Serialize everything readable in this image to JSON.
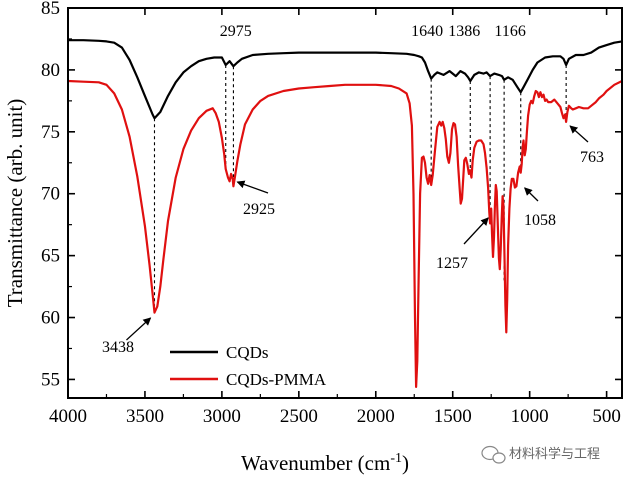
{
  "chart_data": {
    "type": "line",
    "title": "",
    "xlabel": "Wavenumber (cm",
    "xlabel_sup": "-1",
    "xlabel_end": ")",
    "ylabel": "Transmittance (arb. unit)",
    "xlim": [
      4000,
      400
    ],
    "ylim": [
      53.5,
      85
    ],
    "x_reversed": true,
    "xticks": [
      4000,
      3500,
      3000,
      2500,
      2000,
      1500,
      1000,
      500
    ],
    "yticks": [
      55,
      60,
      65,
      70,
      75,
      80,
      85
    ],
    "grid": false,
    "legend_position": "bottom-left",
    "series": [
      {
        "name": "CQDs",
        "color": "#000000",
        "points": [
          [
            4000,
            82.4
          ],
          [
            3900,
            82.4
          ],
          [
            3800,
            82.35
          ],
          [
            3750,
            82.3
          ],
          [
            3700,
            82.2
          ],
          [
            3650,
            81.8
          ],
          [
            3600,
            80.8
          ],
          [
            3550,
            79.4
          ],
          [
            3500,
            77.9
          ],
          [
            3450,
            76.4
          ],
          [
            3438,
            76.1
          ],
          [
            3400,
            76.6
          ],
          [
            3350,
            77.9
          ],
          [
            3300,
            79.0
          ],
          [
            3250,
            79.8
          ],
          [
            3200,
            80.3
          ],
          [
            3150,
            80.7
          ],
          [
            3100,
            80.9
          ],
          [
            3050,
            81.0
          ],
          [
            3000,
            81.0
          ],
          [
            2975,
            80.4
          ],
          [
            2950,
            80.7
          ],
          [
            2925,
            80.3
          ],
          [
            2900,
            80.6
          ],
          [
            2870,
            80.9
          ],
          [
            2800,
            81.2
          ],
          [
            2700,
            81.3
          ],
          [
            2600,
            81.35
          ],
          [
            2500,
            81.4
          ],
          [
            2400,
            81.4
          ],
          [
            2300,
            81.4
          ],
          [
            2200,
            81.4
          ],
          [
            2100,
            81.4
          ],
          [
            2000,
            81.4
          ],
          [
            1900,
            81.35
          ],
          [
            1800,
            81.3
          ],
          [
            1750,
            81.2
          ],
          [
            1720,
            81.1
          ],
          [
            1700,
            81.0
          ],
          [
            1680,
            80.6
          ],
          [
            1660,
            79.9
          ],
          [
            1640,
            79.3
          ],
          [
            1620,
            79.6
          ],
          [
            1600,
            79.8
          ],
          [
            1560,
            79.6
          ],
          [
            1520,
            79.9
          ],
          [
            1480,
            79.5
          ],
          [
            1450,
            79.9
          ],
          [
            1420,
            79.7
          ],
          [
            1400,
            79.4
          ],
          [
            1386,
            79.1
          ],
          [
            1360,
            79.6
          ],
          [
            1330,
            79.8
          ],
          [
            1300,
            79.7
          ],
          [
            1280,
            79.8
          ],
          [
            1257,
            79.5
          ],
          [
            1230,
            79.7
          ],
          [
            1200,
            79.6
          ],
          [
            1180,
            79.5
          ],
          [
            1166,
            79.2
          ],
          [
            1140,
            79.4
          ],
          [
            1110,
            79.2
          ],
          [
            1080,
            78.6
          ],
          [
            1058,
            78.2
          ],
          [
            1040,
            78.6
          ],
          [
            1010,
            79.3
          ],
          [
            980,
            80.0
          ],
          [
            950,
            80.6
          ],
          [
            900,
            81.0
          ],
          [
            850,
            81.1
          ],
          [
            800,
            81.1
          ],
          [
            780,
            80.9
          ],
          [
            763,
            80.4
          ],
          [
            745,
            80.9
          ],
          [
            700,
            81.2
          ],
          [
            650,
            81.2
          ],
          [
            600,
            81.4
          ],
          [
            550,
            81.8
          ],
          [
            500,
            82.0
          ],
          [
            450,
            82.2
          ],
          [
            400,
            82.3
          ]
        ]
      },
      {
        "name": "CQDs-PMMA",
        "color": "#e01010",
        "points": [
          [
            4000,
            79.1
          ],
          [
            3900,
            79.05
          ],
          [
            3800,
            79.0
          ],
          [
            3750,
            78.8
          ],
          [
            3700,
            78.1
          ],
          [
            3650,
            76.8
          ],
          [
            3600,
            74.6
          ],
          [
            3550,
            71.4
          ],
          [
            3500,
            67.4
          ],
          [
            3470,
            64.2
          ],
          [
            3450,
            61.9
          ],
          [
            3438,
            60.4
          ],
          [
            3420,
            60.9
          ],
          [
            3400,
            62.5
          ],
          [
            3380,
            64.7
          ],
          [
            3350,
            67.8
          ],
          [
            3300,
            71.3
          ],
          [
            3250,
            73.6
          ],
          [
            3200,
            75.1
          ],
          [
            3150,
            76.1
          ],
          [
            3100,
            76.7
          ],
          [
            3060,
            76.9
          ],
          [
            3040,
            76.5
          ],
          [
            3020,
            75.8
          ],
          [
            3000,
            74.5
          ],
          [
            2985,
            73.2
          ],
          [
            2975,
            72.0
          ],
          [
            2960,
            71.3
          ],
          [
            2950,
            71.0
          ],
          [
            2940,
            71.6
          ],
          [
            2930,
            71.2
          ],
          [
            2925,
            70.6
          ],
          [
            2915,
            71.4
          ],
          [
            2900,
            72.6
          ],
          [
            2880,
            74.0
          ],
          [
            2850,
            75.6
          ],
          [
            2800,
            76.8
          ],
          [
            2750,
            77.5
          ],
          [
            2700,
            77.9
          ],
          [
            2600,
            78.3
          ],
          [
            2500,
            78.5
          ],
          [
            2400,
            78.6
          ],
          [
            2300,
            78.7
          ],
          [
            2200,
            78.8
          ],
          [
            2100,
            78.8
          ],
          [
            2000,
            78.8
          ],
          [
            1900,
            78.7
          ],
          [
            1850,
            78.5
          ],
          [
            1800,
            78.1
          ],
          [
            1780,
            77.3
          ],
          [
            1765,
            75.5
          ],
          [
            1755,
            70.0
          ],
          [
            1745,
            60.0
          ],
          [
            1738,
            54.4
          ],
          [
            1730,
            56.5
          ],
          [
            1722,
            63.0
          ],
          [
            1712,
            70.0
          ],
          [
            1700,
            72.9
          ],
          [
            1690,
            73.0
          ],
          [
            1680,
            72.5
          ],
          [
            1670,
            71.3
          ],
          [
            1660,
            70.8
          ],
          [
            1650,
            71.5
          ],
          [
            1640,
            70.7
          ],
          [
            1630,
            71.5
          ],
          [
            1615,
            73.5
          ],
          [
            1600,
            75.4
          ],
          [
            1585,
            75.8
          ],
          [
            1575,
            75.5
          ],
          [
            1565,
            75.8
          ],
          [
            1555,
            75.3
          ],
          [
            1545,
            74.4
          ],
          [
            1535,
            73.0
          ],
          [
            1525,
            72.5
          ],
          [
            1515,
            73.3
          ],
          [
            1505,
            75.2
          ],
          [
            1495,
            75.7
          ],
          [
            1485,
            75.6
          ],
          [
            1475,
            74.6
          ],
          [
            1465,
            72.3
          ],
          [
            1455,
            70.5
          ],
          [
            1448,
            69.2
          ],
          [
            1440,
            69.6
          ],
          [
            1432,
            71.2
          ],
          [
            1425,
            72.7
          ],
          [
            1415,
            72.9
          ],
          [
            1405,
            72.4
          ],
          [
            1395,
            71.6
          ],
          [
            1388,
            71.9
          ],
          [
            1378,
            71.3
          ],
          [
            1370,
            72.7
          ],
          [
            1360,
            73.7
          ],
          [
            1345,
            74.2
          ],
          [
            1330,
            74.3
          ],
          [
            1315,
            74.3
          ],
          [
            1300,
            74.0
          ],
          [
            1290,
            73.3
          ],
          [
            1280,
            72.1
          ],
          [
            1270,
            70.5
          ],
          [
            1262,
            68.5
          ],
          [
            1257,
            67.6
          ],
          [
            1250,
            68.8
          ],
          [
            1245,
            66.8
          ],
          [
            1238,
            64.9
          ],
          [
            1232,
            66.5
          ],
          [
            1226,
            69.0
          ],
          [
            1220,
            70.7
          ],
          [
            1214,
            70.2
          ],
          [
            1208,
            67.7
          ],
          [
            1200,
            64.8
          ],
          [
            1194,
            63.9
          ],
          [
            1188,
            65.5
          ],
          [
            1182,
            68.0
          ],
          [
            1176,
            69.8
          ],
          [
            1170,
            69.0
          ],
          [
            1164,
            65.3
          ],
          [
            1158,
            61.0
          ],
          [
            1152,
            58.8
          ],
          [
            1146,
            61.5
          ],
          [
            1140,
            65.8
          ],
          [
            1132,
            68.8
          ],
          [
            1124,
            70.4
          ],
          [
            1116,
            71.2
          ],
          [
            1106,
            71.2
          ],
          [
            1096,
            70.5
          ],
          [
            1086,
            70.6
          ],
          [
            1075,
            71.7
          ],
          [
            1065,
            72.2
          ],
          [
            1058,
            71.7
          ],
          [
            1052,
            72.4
          ],
          [
            1045,
            73.8
          ],
          [
            1040,
            74.3
          ],
          [
            1032,
            73.1
          ],
          [
            1025,
            73.6
          ],
          [
            1018,
            75.0
          ],
          [
            1010,
            76.3
          ],
          [
            1000,
            77.2
          ],
          [
            990,
            77.5
          ],
          [
            980,
            77.3
          ],
          [
            970,
            77.9
          ],
          [
            960,
            78.3
          ],
          [
            950,
            78.2
          ],
          [
            940,
            77.8
          ],
          [
            930,
            78.2
          ],
          [
            920,
            77.8
          ],
          [
            910,
            78.0
          ],
          [
            900,
            77.5
          ],
          [
            890,
            77.6
          ],
          [
            880,
            77.4
          ],
          [
            860,
            77.4
          ],
          [
            840,
            77.6
          ],
          [
            820,
            77.3
          ],
          [
            800,
            77.0
          ],
          [
            790,
            76.5
          ],
          [
            780,
            76.1
          ],
          [
            770,
            76.4
          ],
          [
            763,
            75.8
          ],
          [
            755,
            76.6
          ],
          [
            745,
            77.1
          ],
          [
            730,
            76.9
          ],
          [
            720,
            76.8
          ],
          [
            700,
            76.9
          ],
          [
            680,
            77.0
          ],
          [
            650,
            76.9
          ],
          [
            620,
            76.9
          ],
          [
            600,
            77.1
          ],
          [
            570,
            77.4
          ],
          [
            550,
            77.7
          ],
          [
            520,
            78.0
          ],
          [
            500,
            78.3
          ],
          [
            450,
            78.8
          ],
          [
            400,
            79.1
          ]
        ]
      }
    ],
    "annotations": [
      {
        "label": "2975",
        "x": 2975,
        "from_y": 80.4,
        "to_y": 72.0,
        "label_y": 83.4
      },
      {
        "label": "1640",
        "x": 1640,
        "from_y": 79.3,
        "to_y": 70.7,
        "label_y": 82.1
      },
      {
        "label": "1386",
        "x": 1386,
        "from_y": 79.1,
        "to_y": 71.9,
        "label_y": 82.1
      },
      {
        "label": "1166",
        "x": 1166,
        "from_y": 79.2,
        "to_y": 63.0,
        "label_y": 82.1
      },
      {
        "label": "3438",
        "x": 3438,
        "from_y": 76.1,
        "to_y": 60.4,
        "label_y": 57.8
      },
      {
        "label": "2925",
        "x": 2925,
        "from_y": 80.3,
        "to_y": 70.6,
        "label_y": 68.1
      },
      {
        "label": "1257",
        "x": 1257,
        "from_y": 79.5,
        "to_y": 67.6,
        "label_y": 64.3
      },
      {
        "label": "1058",
        "x": 1058,
        "from_y": 78.2,
        "to_y": 71.7,
        "label_y": 67.3
      },
      {
        "label": "763",
        "x": 763,
        "from_y": 80.4,
        "to_y": 75.8,
        "label_y": 73.5
      }
    ]
  },
  "watermark": {
    "text": "材料科学与工程",
    "icon": "wechat-icon"
  }
}
